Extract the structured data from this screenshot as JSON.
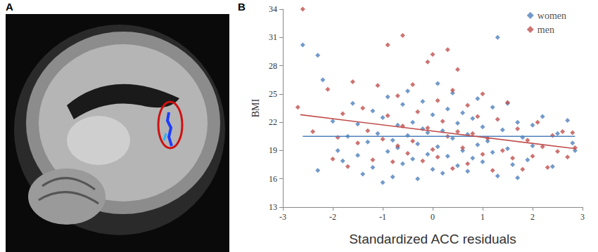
{
  "chart_data": {
    "type": "scatter",
    "annotations": [
      "A",
      "B"
    ],
    "x_label": "Standardized ACC residuals",
    "y_label": "BMI",
    "xlim": [
      -3,
      3
    ],
    "xticks": [
      -3,
      -2,
      -1,
      0,
      1,
      2,
      3
    ],
    "ylim": [
      13,
      34
    ],
    "yticks": [
      13,
      16,
      19,
      22,
      25,
      28,
      31,
      34
    ],
    "grid": false,
    "legend": "upper right",
    "series": [
      {
        "name": "women",
        "color": "#4f81bd",
        "marker": "diamond",
        "x": [
          -2.6,
          -2.3,
          -2.2,
          -2.3,
          -2.0,
          -1.9,
          -1.8,
          -1.7,
          -1.6,
          -1.5,
          -1.5,
          -1.4,
          -1.3,
          -1.2,
          -1.2,
          -1.1,
          -1.0,
          -1.0,
          -0.9,
          -0.9,
          -0.8,
          -0.8,
          -0.7,
          -0.7,
          -0.6,
          -0.6,
          -0.5,
          -0.5,
          -0.4,
          -0.4,
          -0.3,
          -0.3,
          -0.2,
          -0.2,
          -0.1,
          -0.1,
          0,
          0,
          0.1,
          0.1,
          0.2,
          0.2,
          0.3,
          0.3,
          0.4,
          0.4,
          0.5,
          0.5,
          0.6,
          0.6,
          0.7,
          0.7,
          0.8,
          0.8,
          0.9,
          0.9,
          1.0,
          1.0,
          1.1,
          1.2,
          1.2,
          1.3,
          1.3,
          1.4,
          1.5,
          1.5,
          1.6,
          1.7,
          1.7,
          1.8,
          1.9,
          2.0,
          2.0,
          2.2,
          2.4,
          2.5,
          2.7,
          2.8,
          2.85
        ],
        "values": [
          30.2,
          29.1,
          26.5,
          16.9,
          22.1,
          19.0,
          17.9,
          20.5,
          24.0,
          18.5,
          21.8,
          16.5,
          19.9,
          23.2,
          17.2,
          20.8,
          15.6,
          22.5,
          18.9,
          24.7,
          16.2,
          20.1,
          21.7,
          19.3,
          23.9,
          17.6,
          20.6,
          25.3,
          18.1,
          22.0,
          16.0,
          19.7,
          21.3,
          24.2,
          18.6,
          20.9,
          17.0,
          22.8,
          19.4,
          26.1,
          21.1,
          16.6,
          23.4,
          18.4,
          20.3,
          25.1,
          17.4,
          21.9,
          19.0,
          23.0,
          16.8,
          20.7,
          22.4,
          18.2,
          24.5,
          19.6,
          17.8,
          21.5,
          20.0,
          23.6,
          18.8,
          31.0,
          16.3,
          21.2,
          19.2,
          24.0,
          17.5,
          22.0,
          16.1,
          20.4,
          18.0,
          21.7,
          19.5,
          22.6,
          17.3,
          20.8,
          22.2,
          19.8,
          19.0
        ],
        "fit": {
          "type": "line",
          "x": [
            -2.6,
            2.85
          ],
          "values": [
            20.5,
            20.5
          ]
        }
      },
      {
        "name": "men",
        "color": "#c0504d",
        "marker": "diamond",
        "x": [
          -2.6,
          -2.7,
          -2.4,
          -2.1,
          -2.0,
          -1.9,
          -1.8,
          -1.7,
          -1.6,
          -1.5,
          -1.4,
          -1.3,
          -1.2,
          -1.1,
          -1.0,
          -0.9,
          -0.9,
          -0.8,
          -0.7,
          -0.7,
          -0.6,
          -0.6,
          -0.5,
          -0.4,
          -0.4,
          -0.3,
          -0.2,
          -0.1,
          -0.1,
          0,
          0,
          0.1,
          0.1,
          0.2,
          0.3,
          0.3,
          0.4,
          0.4,
          0.5,
          0.5,
          0.6,
          0.7,
          0.7,
          0.8,
          0.9,
          1.0,
          1.0,
          1.1,
          1.2,
          1.3,
          1.4,
          1.5,
          1.6,
          1.7,
          1.8,
          1.9,
          2.0,
          2.1,
          2.2,
          2.3,
          2.4,
          2.5,
          2.6,
          2.7,
          2.8,
          2.85
        ],
        "values": [
          34.0,
          23.6,
          21.0,
          25.5,
          18.1,
          20.4,
          22.9,
          17.3,
          26.3,
          19.8,
          23.5,
          21.1,
          18.0,
          25.9,
          20.2,
          30.2,
          22.7,
          17.8,
          24.8,
          19.5,
          31.2,
          21.6,
          18.7,
          26.0,
          20.0,
          23.1,
          17.9,
          28.4,
          21.4,
          19.1,
          29.2,
          24.3,
          18.3,
          22.1,
          29.7,
          20.5,
          17.1,
          25.4,
          21.0,
          27.6,
          19.3,
          23.8,
          17.6,
          20.8,
          22.6,
          18.6,
          25.0,
          20.3,
          16.9,
          22.3,
          19.0,
          24.1,
          18.2,
          21.3,
          17.0,
          20.1,
          18.4,
          22.0,
          19.4,
          17.2,
          20.6,
          18.9,
          21.0,
          18.3,
          20.9,
          19.3
        ],
        "fit": {
          "type": "line",
          "x": [
            -2.65,
            2.85
          ],
          "values": [
            22.8,
            19.2
          ]
        }
      }
    ]
  }
}
